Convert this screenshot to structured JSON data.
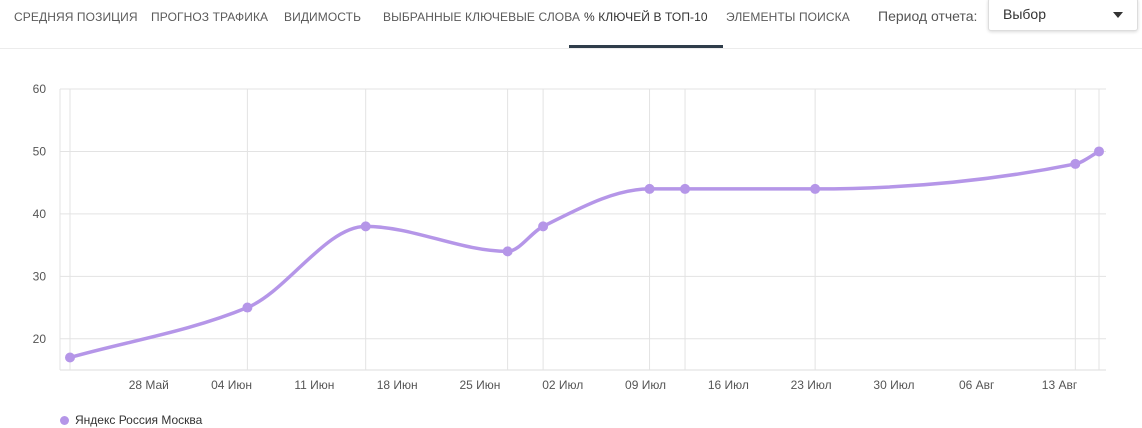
{
  "tabs": [
    {
      "label": "Средняя позиция",
      "active": false
    },
    {
      "label": "Прогноз трафика",
      "active": false
    },
    {
      "label": "Видимость",
      "active": false
    },
    {
      "label": "Выбранные ключевые слова",
      "active": false
    },
    {
      "label": "% ключей в ТОП-10",
      "active": true
    },
    {
      "label": "Элементы поиска",
      "active": false
    }
  ],
  "period": {
    "label": "Период отчета:",
    "selected": "Выбор"
  },
  "chart_data": {
    "type": "line",
    "title": "",
    "xlabel": "",
    "ylabel": "",
    "y_ticks": [
      20,
      30,
      40,
      50,
      60
    ],
    "x_ticks": [
      "28 Май",
      "04 Июн",
      "11 Июн",
      "18 Июн",
      "25 Июн",
      "02 Июл",
      "09 Июл",
      "16 Июл",
      "23 Июл",
      "30 Июл",
      "06 Авг",
      "13 Авг"
    ],
    "grid": true,
    "legend_position": "bottom-left",
    "series": [
      {
        "name": "Яндекс Россия Москва",
        "color": "#b596e8",
        "points": [
          {
            "x": "2018-05-21",
            "y": 17
          },
          {
            "x": "2018-06-05",
            "y": 25
          },
          {
            "x": "2018-06-15",
            "y": 38
          },
          {
            "x": "2018-06-27",
            "y": 34
          },
          {
            "x": "2018-06-30",
            "y": 38
          },
          {
            "x": "2018-07-09",
            "y": 44
          },
          {
            "x": "2018-07-12",
            "y": 44
          },
          {
            "x": "2018-07-23",
            "y": 44
          },
          {
            "x": "2018-08-14",
            "y": 48
          },
          {
            "x": "2018-08-16",
            "y": 50
          }
        ]
      }
    ]
  }
}
